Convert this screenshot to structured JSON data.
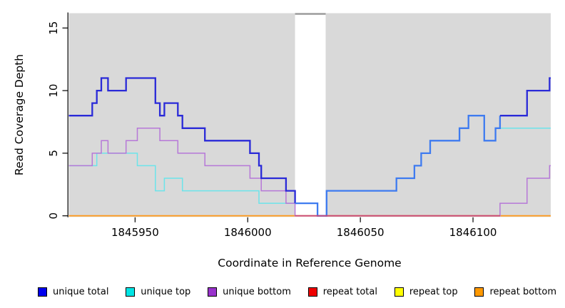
{
  "chart_data": {
    "type": "line",
    "step": true,
    "xlabel": "Coordinate in Reference Genome",
    "ylabel": "Read Coverage Depth",
    "xlim": [
      1845920.6,
      1846134.5
    ],
    "ylim": [
      0,
      16.2
    ],
    "x_ticks": [
      1845950,
      1846000,
      1846050,
      1846100
    ],
    "y_ticks": [
      0,
      5,
      10,
      15
    ],
    "plot_bg": "#d9d9d9",
    "masked_region": {
      "from": 1846021,
      "to": 1846034.6,
      "fill": "#ffffff",
      "cap_color": "#9c9c9c"
    },
    "baseline_overlay": {
      "from": 1846021,
      "to": 1846112,
      "color": "#c84878"
    },
    "draw_order": [
      "repeat total",
      "repeat top",
      "repeat bottom",
      "unique top",
      "unique bottom",
      "unique total"
    ],
    "series": [
      {
        "name": "unique total",
        "legend_color": "#0000ee",
        "line_color": "#2a2ad8",
        "line_width": 2.3,
        "color_zones": [
          {
            "to": 1846021,
            "color": "#2a2ad8"
          },
          {
            "to": 1846112,
            "color": "#3e7bf0"
          },
          {
            "to": 1846134.5,
            "color": "#2a2ad8"
          }
        ],
        "points": [
          [
            1845920.6,
            8
          ],
          [
            1845931,
            9
          ],
          [
            1845933,
            10
          ],
          [
            1845935,
            11
          ],
          [
            1845938,
            10
          ],
          [
            1845946,
            11
          ],
          [
            1845959,
            9
          ],
          [
            1845961,
            8
          ],
          [
            1845963,
            9
          ],
          [
            1845969,
            8
          ],
          [
            1845971,
            7
          ],
          [
            1845981,
            6
          ],
          [
            1846001,
            5
          ],
          [
            1846005,
            4
          ],
          [
            1846006,
            3
          ],
          [
            1846017,
            2
          ],
          [
            1846021,
            1
          ],
          [
            1846031,
            0
          ],
          [
            1846035,
            2
          ],
          [
            1846066,
            3
          ],
          [
            1846074,
            4
          ],
          [
            1846077,
            5
          ],
          [
            1846081,
            6
          ],
          [
            1846094,
            7
          ],
          [
            1846098,
            8
          ],
          [
            1846105,
            6
          ],
          [
            1846110,
            7
          ],
          [
            1846112,
            8
          ],
          [
            1846124,
            10
          ],
          [
            1846134,
            11
          ]
        ]
      },
      {
        "name": "unique top",
        "legend_color": "#00e5e5",
        "line_color": "#6ce4ea",
        "line_width": 1.5,
        "points": [
          [
            1845920.6,
            4
          ],
          [
            1845933,
            5
          ],
          [
            1845951,
            4
          ],
          [
            1845959,
            2
          ],
          [
            1845963,
            3
          ],
          [
            1845971,
            2
          ],
          [
            1846005,
            1
          ],
          [
            1846031,
            0
          ],
          [
            1846035,
            2
          ],
          [
            1846066,
            3
          ],
          [
            1846074,
            4
          ],
          [
            1846077,
            5
          ],
          [
            1846081,
            6
          ],
          [
            1846094,
            7
          ],
          [
            1846098,
            8
          ],
          [
            1846105,
            6
          ],
          [
            1846110,
            7
          ]
        ]
      },
      {
        "name": "unique bottom",
        "legend_color": "#9933cc",
        "line_color": "#b678d8",
        "line_width": 1.5,
        "points": [
          [
            1845920.6,
            4
          ],
          [
            1845931,
            5
          ],
          [
            1845935,
            6
          ],
          [
            1845938,
            5
          ],
          [
            1845946,
            6
          ],
          [
            1845951,
            7
          ],
          [
            1845961,
            6
          ],
          [
            1845969,
            5
          ],
          [
            1845981,
            4
          ],
          [
            1846001,
            3
          ],
          [
            1846006,
            2
          ],
          [
            1846017,
            1
          ],
          [
            1846021,
            0
          ],
          [
            1846112,
            1
          ],
          [
            1846124,
            3
          ],
          [
            1846134,
            4
          ]
        ]
      },
      {
        "name": "repeat total",
        "legend_color": "#ee0000",
        "line_color": "#ee0000",
        "line_width": 1.5,
        "points": [
          [
            1845920.6,
            0
          ]
        ]
      },
      {
        "name": "repeat top",
        "legend_color": "#ffff00",
        "line_color": "#ffff00",
        "line_width": 1.5,
        "points": [
          [
            1845920.6,
            0
          ]
        ]
      },
      {
        "name": "repeat bottom",
        "legend_color": "#ff9900",
        "line_color": "#ff9a1e",
        "line_width": 1.8,
        "points": [
          [
            1845920.6,
            0
          ]
        ]
      }
    ]
  },
  "legend": {
    "items": [
      {
        "label": "unique total",
        "color": "#0000ee"
      },
      {
        "label": "unique top",
        "color": "#00e5e5"
      },
      {
        "label": "unique bottom",
        "color": "#9933cc"
      },
      {
        "label": "repeat total",
        "color": "#ee0000"
      },
      {
        "label": "repeat top",
        "color": "#ffff00"
      },
      {
        "label": "repeat bottom",
        "color": "#ff9900"
      }
    ]
  }
}
